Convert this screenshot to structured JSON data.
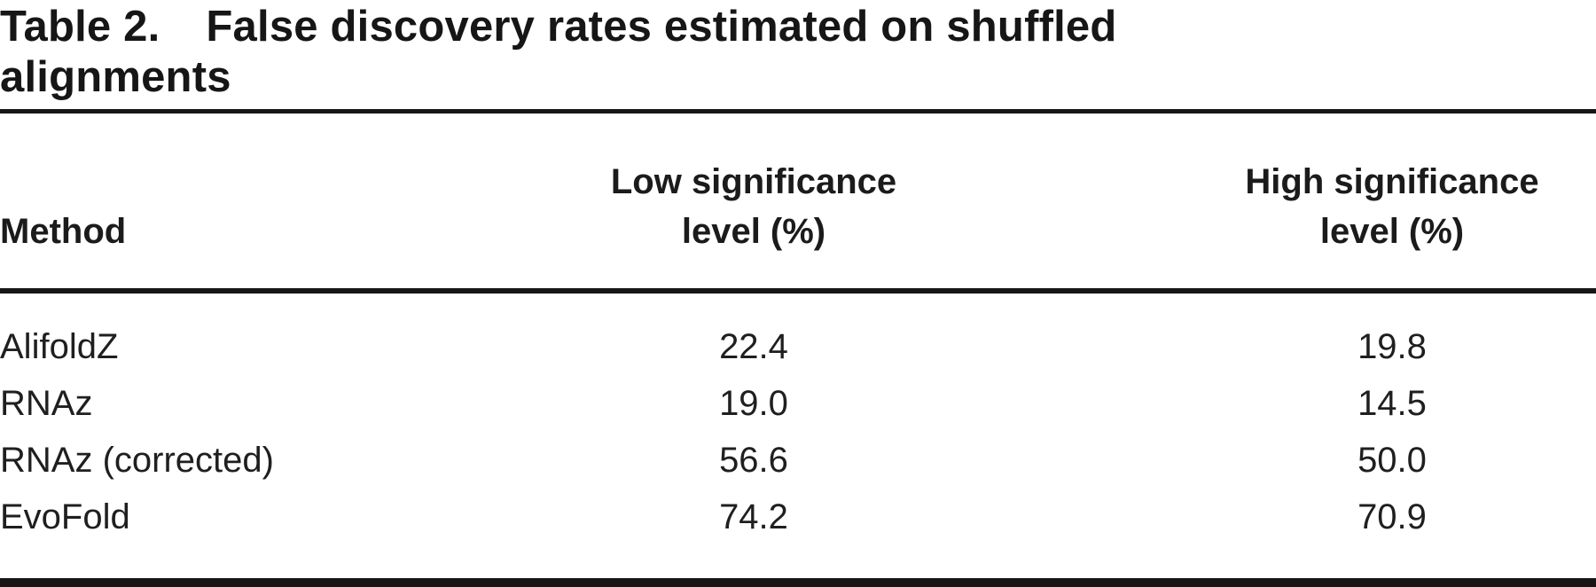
{
  "table": {
    "title": {
      "label": "Table 2.",
      "text_line1": "False discovery rates estimated on shuffled",
      "text_line2": "alignments"
    },
    "columns": [
      {
        "label": "Method"
      },
      {
        "label": "Low significance level (%)"
      },
      {
        "label": "High significance level (%)"
      }
    ],
    "rows": [
      {
        "method": "AlifoldZ",
        "low": "22.4",
        "high": "19.8"
      },
      {
        "method": "RNAz",
        "low": "19.0",
        "high": "14.5"
      },
      {
        "method": "RNAz (corrected)",
        "low": "56.6",
        "high": "50.0"
      },
      {
        "method": "EvoFold",
        "low": "74.2",
        "high": "70.9"
      }
    ],
    "colors": {
      "text": "#1b1b1b",
      "rule": "#161616",
      "background": "#ffffff"
    }
  },
  "chart_data": {
    "type": "table",
    "title": "Table 2. False discovery rates estimated on shuffled alignments",
    "columns": [
      "Method",
      "Low significance level (%)",
      "High significance level (%)"
    ],
    "rows": [
      [
        "AlifoldZ",
        22.4,
        19.8
      ],
      [
        "RNAz",
        19.0,
        14.5
      ],
      [
        "RNAz (corrected)",
        56.6,
        50.0
      ],
      [
        "EvoFold",
        74.2,
        70.9
      ]
    ]
  }
}
